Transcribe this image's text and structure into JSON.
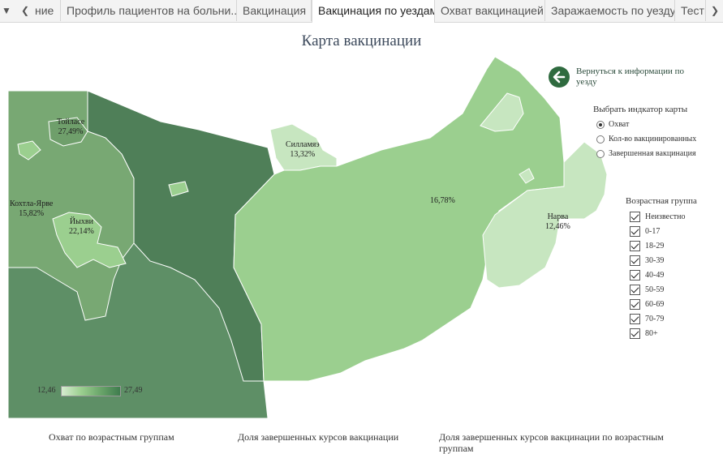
{
  "tabs": {
    "first_partial": "ние",
    "items": [
      {
        "label": "Профиль пациентов на больни..."
      },
      {
        "label": "Вакцинация"
      },
      {
        "label": "Вакцинация по уездам"
      },
      {
        "label": "Охват вакцинацией"
      },
      {
        "label": "Заражаемость по уезду"
      },
      {
        "label": "Тести"
      }
    ],
    "active": "Вакцинация по уездам"
  },
  "title": "Карта вакцинации",
  "regions": [
    {
      "name": "Тойласе",
      "value": "27,49%"
    },
    {
      "name": "Силламяэ",
      "value": "13,32%"
    },
    {
      "name": "Кохтла-Ярве",
      "value": "15,82%"
    },
    {
      "name": "Йыхви",
      "value": "22,14%"
    },
    {
      "name": "",
      "value": "16,78%"
    },
    {
      "name": "Нарва",
      "value": "12,46%"
    }
  ],
  "back_link": "Вернуться к информации по уезду",
  "indicator": {
    "heading": "Выбрать индкатор карты",
    "options": [
      "Охват",
      "Кол-во вакцинированных",
      "Завершенная вакцинация"
    ],
    "selected": 0
  },
  "age_groups": {
    "heading": "Возрастная группа",
    "items": [
      "Неизвестно",
      "0-17",
      "18-29",
      "30-39",
      "40-49",
      "50-59",
      "60-69",
      "70-79",
      "80+"
    ]
  },
  "scale": {
    "min": "12,46",
    "max": "27,49"
  },
  "bottom_titles": [
    "Охват по возрастным группам",
    "Доля завершенных курсов вакцинации",
    "Доля завершенных курсов вакцинации по возрастным группам"
  ],
  "colors": {
    "dark": "#5e8f66",
    "darker": "#4f7f58",
    "mid": "#78a873",
    "light": "#9bcf8f",
    "lighter": "#c7e6c0",
    "accent": "#2f6b3f"
  }
}
